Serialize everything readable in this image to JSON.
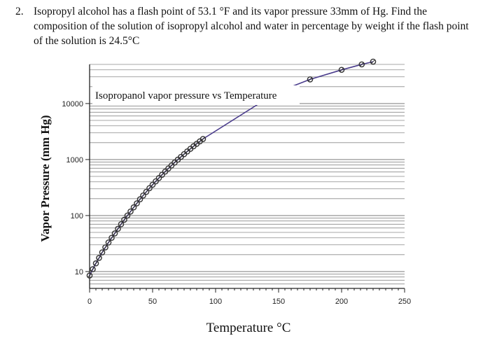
{
  "question": {
    "number": "2.",
    "text": "Isopropyl alcohol has a flash point of 53.1 °F and its vapor pressure 33mm of Hg. Find the composition of the solution of isopropyl alcohol and water in percentage by weight if the flash point of the solution is 24.5°C"
  },
  "colors": {
    "curve": "#4a3c8c",
    "marker": "#333333",
    "grid": "#8a8a8a",
    "axis": "#222222"
  },
  "chart_data": {
    "type": "scatter",
    "title": "Isopropanol vapor pressure vs Temperature",
    "xlabel": "Temperature °C",
    "ylabel": "Vapor Pressure (mm Hg)",
    "xlim": [
      0,
      250
    ],
    "ylim": [
      5,
      50000
    ],
    "yscale": "log",
    "grid": true,
    "x_ticks": [
      0,
      50,
      100,
      150,
      200,
      250
    ],
    "x_tick_labels": [
      "0",
      "50",
      "100",
      "150",
      "200",
      "250"
    ],
    "y_ticks": [
      10,
      100,
      1000,
      10000
    ],
    "y_tick_labels": [
      "10",
      "100",
      "1000",
      "10000"
    ],
    "series": [
      {
        "x": [
          0,
          2.5,
          5,
          7.5,
          10,
          12.5,
          15,
          17.5,
          20,
          22.5,
          25,
          27.5,
          30,
          32.5,
          35,
          37.5,
          40,
          42.5,
          45,
          47.5,
          50,
          52.5,
          55,
          57.5,
          60,
          62.5,
          65,
          67.5,
          70,
          72.5,
          75,
          77.5,
          80,
          82.5,
          85,
          87.5,
          90,
          147,
          152,
          175,
          200,
          216,
          225
        ],
        "y": [
          8.5,
          11,
          14,
          17.5,
          22,
          27,
          33,
          40,
          48,
          58,
          70,
          84,
          100,
          118,
          140,
          165,
          195,
          228,
          265,
          308,
          355,
          408,
          468,
          535,
          610,
          692,
          783,
          884,
          995,
          1115,
          1250,
          1395,
          1555,
          1725,
          1910,
          2110,
          2330,
          15000,
          17000,
          27000,
          40000,
          50000,
          56000
        ]
      }
    ]
  }
}
